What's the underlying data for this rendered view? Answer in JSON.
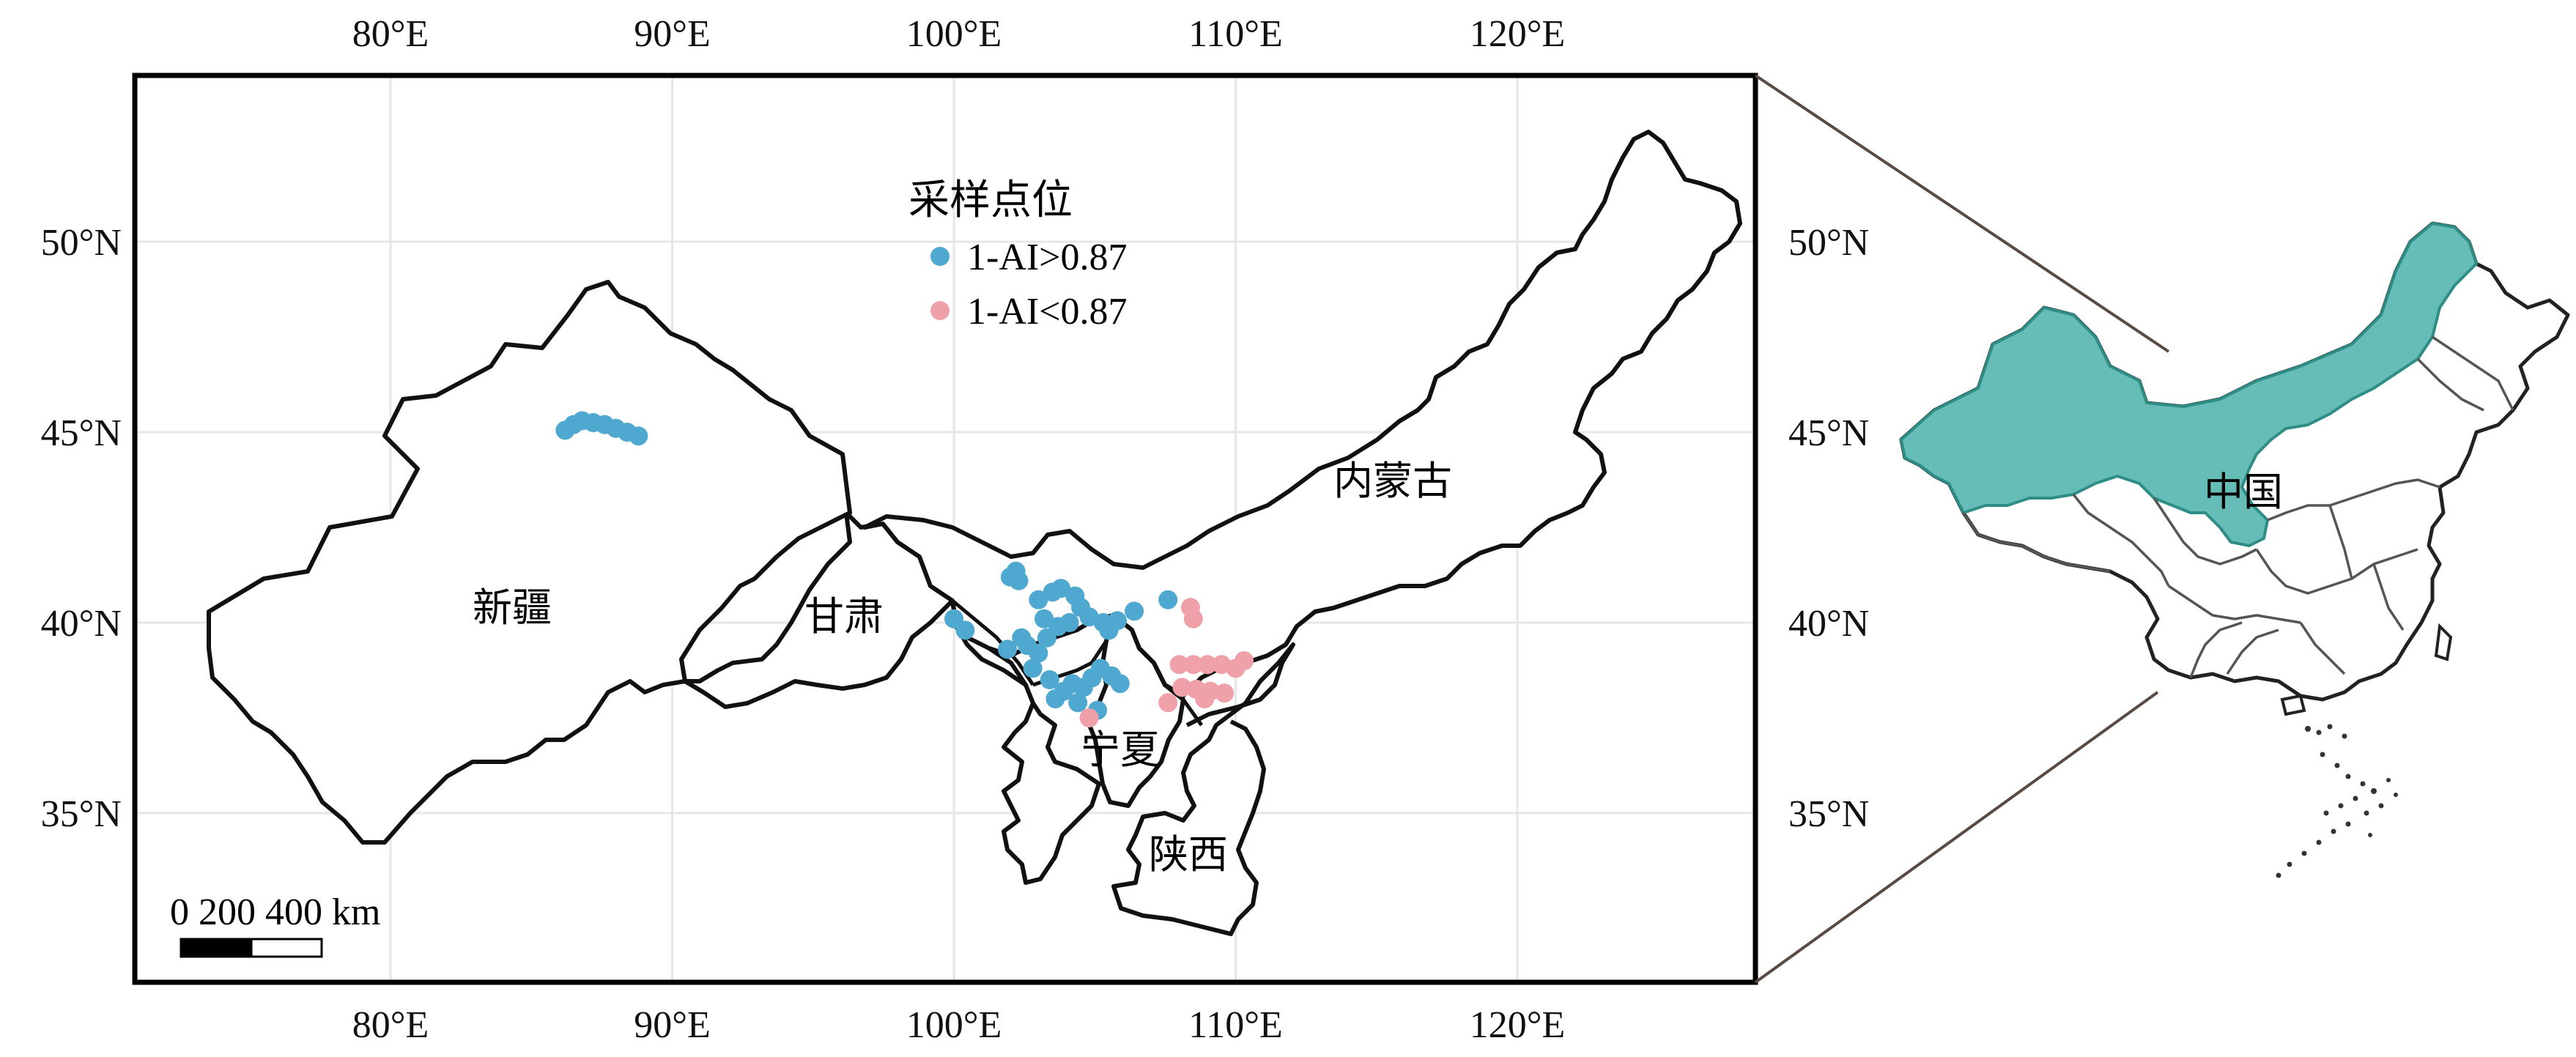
{
  "map": {
    "lon_ticks": [
      "80°E",
      "90°E",
      "100°E",
      "110°E",
      "120°E"
    ],
    "lat_ticks": [
      "50°N",
      "45°N",
      "40°N",
      "35°N"
    ],
    "lon_values": [
      80,
      90,
      100,
      110,
      120
    ],
    "lat_values": [
      50,
      45,
      40,
      35
    ],
    "regions": {
      "xinjiang": "新疆",
      "gansu": "甘肃",
      "neimenggu": "内蒙古",
      "ningxia": "宁夏",
      "shaanxi": "陕西"
    },
    "scale_bar": {
      "label": "0  200 400 km"
    }
  },
  "legend": {
    "title": "采样点位",
    "items": [
      {
        "label": "1-AI>0.87",
        "color": "#4fa8cf"
      },
      {
        "label": "1-AI<0.87",
        "color": "#f0a0a8"
      }
    ]
  },
  "inset": {
    "label": "中国",
    "highlight_color": "#66bcb6"
  },
  "sample_points": {
    "high": [
      [
        86.2,
        45.05
      ],
      [
        86.5,
        45.2
      ],
      [
        86.8,
        45.3
      ],
      [
        87.2,
        45.25
      ],
      [
        87.6,
        45.2
      ],
      [
        88.0,
        45.1
      ],
      [
        88.4,
        45.0
      ],
      [
        88.8,
        44.9
      ],
      [
        100.0,
        40.1
      ],
      [
        100.4,
        39.8
      ],
      [
        102.2,
        41.35
      ],
      [
        102.3,
        41.1
      ],
      [
        102.0,
        41.2
      ],
      [
        103.0,
        40.6
      ],
      [
        103.5,
        40.8
      ],
      [
        103.8,
        40.9
      ],
      [
        104.3,
        40.7
      ],
      [
        104.5,
        40.4
      ],
      [
        104.8,
        40.15
      ],
      [
        105.3,
        40.0
      ],
      [
        105.5,
        39.8
      ],
      [
        105.8,
        40.05
      ],
      [
        106.4,
        40.3
      ],
      [
        107.6,
        40.6
      ],
      [
        103.2,
        40.1
      ],
      [
        103.7,
        39.9
      ],
      [
        104.1,
        40.0
      ],
      [
        102.4,
        39.6
      ],
      [
        103.0,
        39.2
      ],
      [
        102.8,
        38.8
      ],
      [
        103.4,
        38.5
      ],
      [
        103.9,
        38.2
      ],
      [
        104.2,
        38.4
      ],
      [
        104.6,
        38.3
      ],
      [
        104.9,
        38.55
      ],
      [
        105.2,
        38.8
      ],
      [
        105.6,
        38.6
      ],
      [
        105.9,
        38.4
      ],
      [
        103.6,
        38.0
      ],
      [
        104.4,
        37.9
      ],
      [
        105.1,
        37.7
      ],
      [
        102.6,
        39.4
      ],
      [
        101.9,
        39.3
      ],
      [
        103.3,
        39.6
      ]
    ],
    "low": [
      [
        108.4,
        40.4
      ],
      [
        108.5,
        40.1
      ],
      [
        108.0,
        38.9
      ],
      [
        108.5,
        38.9
      ],
      [
        109.0,
        38.9
      ],
      [
        109.5,
        38.9
      ],
      [
        110.0,
        38.8
      ],
      [
        110.3,
        39.0
      ],
      [
        108.1,
        38.3
      ],
      [
        108.6,
        38.25
      ],
      [
        109.1,
        38.2
      ],
      [
        109.6,
        38.15
      ],
      [
        107.6,
        37.9
      ],
      [
        108.9,
        38.0
      ],
      [
        104.8,
        37.5
      ]
    ]
  }
}
